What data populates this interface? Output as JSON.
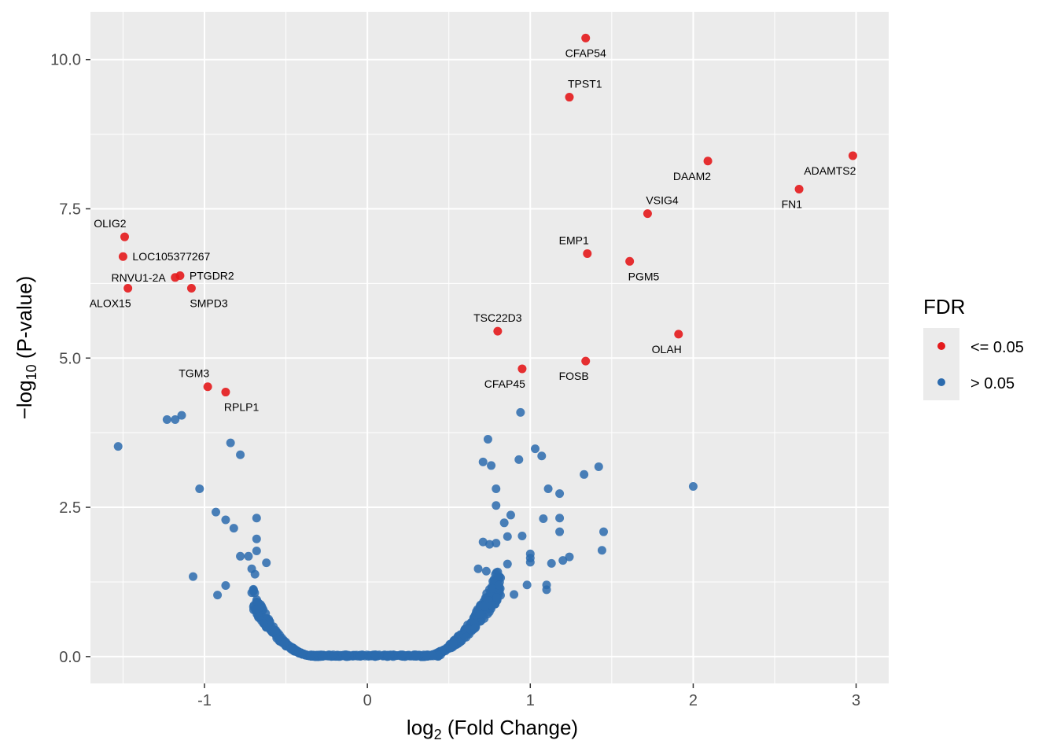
{
  "chart_data": {
    "type": "scatter",
    "xlabel": "log2 (Fold Change)",
    "ylabel": "−log10 (P-value)",
    "xlabel_parts": {
      "base": "log",
      "sub": "2",
      "rest": " (Fold Change)"
    },
    "ylabel_parts": {
      "pre": "−log",
      "sub": "10",
      "rest": " (P-value)"
    },
    "xlim": [
      -1.7,
      3.2
    ],
    "ylim": [
      -0.45,
      10.8
    ],
    "x_ticks": [
      -1,
      0,
      1,
      2,
      3
    ],
    "y_ticks": [
      0.0,
      2.5,
      5.0,
      7.5,
      10.0
    ],
    "x_tick_labels": [
      "-1",
      "0",
      "1",
      "2",
      "3"
    ],
    "y_tick_labels": [
      "0.0",
      "2.5",
      "5.0",
      "7.5",
      "10.0"
    ],
    "grid": true,
    "legend_position": "right",
    "legend": {
      "title": "FDR",
      "entries": [
        {
          "label": "<= 0.05",
          "color": "#E41A1C"
        },
        {
          "label": "> 0.05",
          "color": "#2C6BAE"
        }
      ]
    },
    "colors": {
      "significant": "#E41A1C",
      "not_significant": "#2C6BAE",
      "panel_bg": "#EBEBEB",
      "grid": "#FFFFFF"
    },
    "series": [
      {
        "name": "<= 0.05",
        "color": "#E41A1C",
        "points": [
          {
            "x": 1.34,
            "y": 10.36,
            "label": "CFAP54",
            "label_pos": "below"
          },
          {
            "x": 1.24,
            "y": 9.37,
            "label": "TPST1",
            "label_pos": "above-right"
          },
          {
            "x": 2.98,
            "y": 8.39,
            "label": "ADAMTS2",
            "label_pos": "below-left"
          },
          {
            "x": 2.09,
            "y": 8.3,
            "label": "DAAM2",
            "label_pos": "below-left"
          },
          {
            "x": 2.65,
            "y": 7.83,
            "label": "FN1",
            "label_pos": "below-left"
          },
          {
            "x": 1.72,
            "y": 7.42,
            "label": "VSIG4",
            "label_pos": "above-right"
          },
          {
            "x": -1.49,
            "y": 7.03,
            "label": "OLIG2",
            "label_pos": "above-left"
          },
          {
            "x": 1.35,
            "y": 6.75,
            "label": "EMP1",
            "label_pos": "above-left"
          },
          {
            "x": -1.5,
            "y": 6.7,
            "label": "LOC105377267",
            "label_pos": "right"
          },
          {
            "x": 1.61,
            "y": 6.62,
            "label": "PGM5",
            "label_pos": "below-right"
          },
          {
            "x": -1.15,
            "y": 6.38,
            "label": "PTGDR2",
            "label_pos": "right"
          },
          {
            "x": -1.18,
            "y": 6.35,
            "label": "RNVU1-2A",
            "label_pos": "left"
          },
          {
            "x": -1.47,
            "y": 6.17,
            "label": "ALOX15",
            "label_pos": "below-left"
          },
          {
            "x": -1.08,
            "y": 6.17,
            "label": "SMPD3",
            "label_pos": "below-right"
          },
          {
            "x": 0.8,
            "y": 5.45,
            "label": "TSC22D3",
            "label_pos": "above"
          },
          {
            "x": 1.91,
            "y": 5.4,
            "label": "OLAH",
            "label_pos": "below-left"
          },
          {
            "x": 1.34,
            "y": 4.95,
            "label": "FOSB",
            "label_pos": "below-left"
          },
          {
            "x": 0.95,
            "y": 4.82,
            "label": "CFAP45",
            "label_pos": "below-left"
          },
          {
            "x": -0.98,
            "y": 4.52,
            "label": "TGM3",
            "label_pos": "above-left"
          },
          {
            "x": -0.87,
            "y": 4.43,
            "label": "RPLP1",
            "label_pos": "below-right"
          }
        ]
      },
      {
        "name": "> 0.05",
        "color": "#2C6BAE",
        "points": [
          [
            -1.53,
            3.52
          ],
          [
            -1.23,
            3.97
          ],
          [
            -1.18,
            3.97
          ],
          [
            -1.14,
            4.04
          ],
          [
            -0.84,
            3.58
          ],
          [
            -0.78,
            3.38
          ],
          [
            -1.03,
            2.81
          ],
          [
            -0.93,
            2.42
          ],
          [
            -0.87,
            2.29
          ],
          [
            -0.82,
            2.15
          ],
          [
            -0.68,
            2.32
          ],
          [
            -0.68,
            1.97
          ],
          [
            -0.68,
            1.77
          ],
          [
            -0.73,
            1.68
          ],
          [
            -0.78,
            1.68
          ],
          [
            -0.62,
            1.57
          ],
          [
            -0.71,
            1.47
          ],
          [
            -0.69,
            1.38
          ],
          [
            -1.07,
            1.34
          ],
          [
            -0.87,
            1.19
          ],
          [
            -0.92,
            1.03
          ],
          [
            -0.71,
            1.07
          ],
          [
            0.74,
            3.64
          ],
          [
            0.71,
            3.26
          ],
          [
            0.76,
            3.2
          ],
          [
            0.94,
            4.09
          ],
          [
            0.93,
            3.3
          ],
          [
            1.03,
            3.48
          ],
          [
            1.07,
            3.36
          ],
          [
            1.33,
            3.05
          ],
          [
            1.42,
            3.18
          ],
          [
            2.0,
            2.85
          ],
          [
            0.79,
            2.81
          ],
          [
            1.11,
            2.81
          ],
          [
            1.18,
            2.73
          ],
          [
            0.79,
            2.53
          ],
          [
            0.88,
            2.37
          ],
          [
            1.08,
            2.31
          ],
          [
            1.18,
            2.32
          ],
          [
            0.84,
            2.24
          ],
          [
            0.86,
            2.01
          ],
          [
            0.95,
            2.02
          ],
          [
            1.18,
            2.09
          ],
          [
            1.45,
            2.09
          ],
          [
            0.71,
            1.92
          ],
          [
            0.75,
            1.88
          ],
          [
            0.79,
            1.9
          ],
          [
            1.0,
            1.72
          ],
          [
            1.0,
            1.65
          ],
          [
            1.0,
            1.58
          ],
          [
            1.44,
            1.78
          ],
          [
            1.24,
            1.67
          ],
          [
            1.2,
            1.61
          ],
          [
            1.13,
            1.56
          ],
          [
            0.86,
            1.55
          ],
          [
            0.98,
            1.2
          ],
          [
            1.1,
            1.2
          ],
          [
            1.1,
            1.12
          ],
          [
            0.9,
            1.04
          ],
          [
            0.68,
            1.47
          ],
          [
            0.73,
            1.43
          ]
        ]
      }
    ],
    "background_cloud": {
      "description_free_params": true,
      "left_branch": {
        "x_from": -0.7,
        "x_to": -0.3,
        "y_at_from": 1.05,
        "power": 2.2
      },
      "right_branch": {
        "x_from": 0.33,
        "x_to": 0.82,
        "y_at_to": 1.45,
        "power": 2.0
      },
      "floor": {
        "x_from": -0.35,
        "x_to": 0.45
      }
    }
  }
}
